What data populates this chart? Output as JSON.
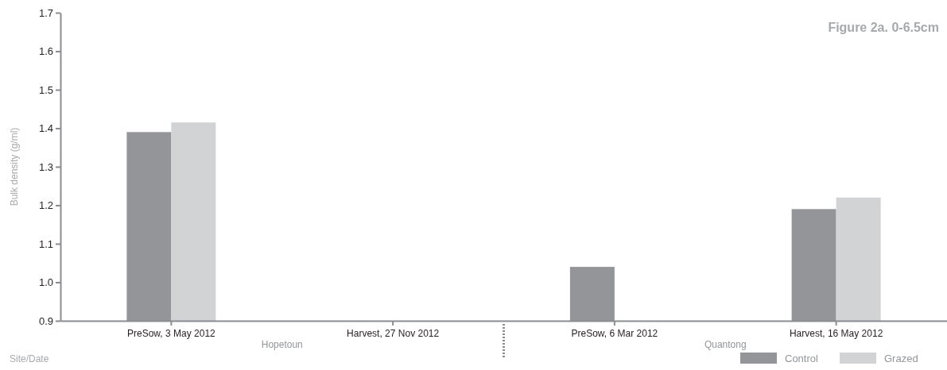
{
  "chart_data": {
    "type": "bar",
    "title": "Figure 2a. 0-6.5cm",
    "xlabel": "Site/Date",
    "ylabel": "Bulk density (g/ml)",
    "categories": [
      "PreSow, 3 May 2012",
      "Harvest, 27 Nov 2012",
      "PreSow, 6 Mar 2012",
      "Harvest, 16 May 2012"
    ],
    "series": [
      {
        "name": "Control",
        "color": "#939598",
        "values": [
          1.39,
          null,
          1.04,
          1.19
        ]
      },
      {
        "name": "Grazed",
        "color": "#d1d3d4",
        "values": [
          1.415,
          null,
          null,
          1.22
        ]
      }
    ],
    "ylim": [
      0.9,
      1.7
    ],
    "yticks": [
      0.9,
      {
        "value": 1.0,
        "label": "1.0"
      },
      1.1,
      1.2,
      1.3,
      1.4,
      1.5,
      1.6,
      1.7
    ],
    "annotations": [
      "Hopetoun",
      "Quantong"
    ],
    "legend": "bottom right",
    "grid": false
  }
}
